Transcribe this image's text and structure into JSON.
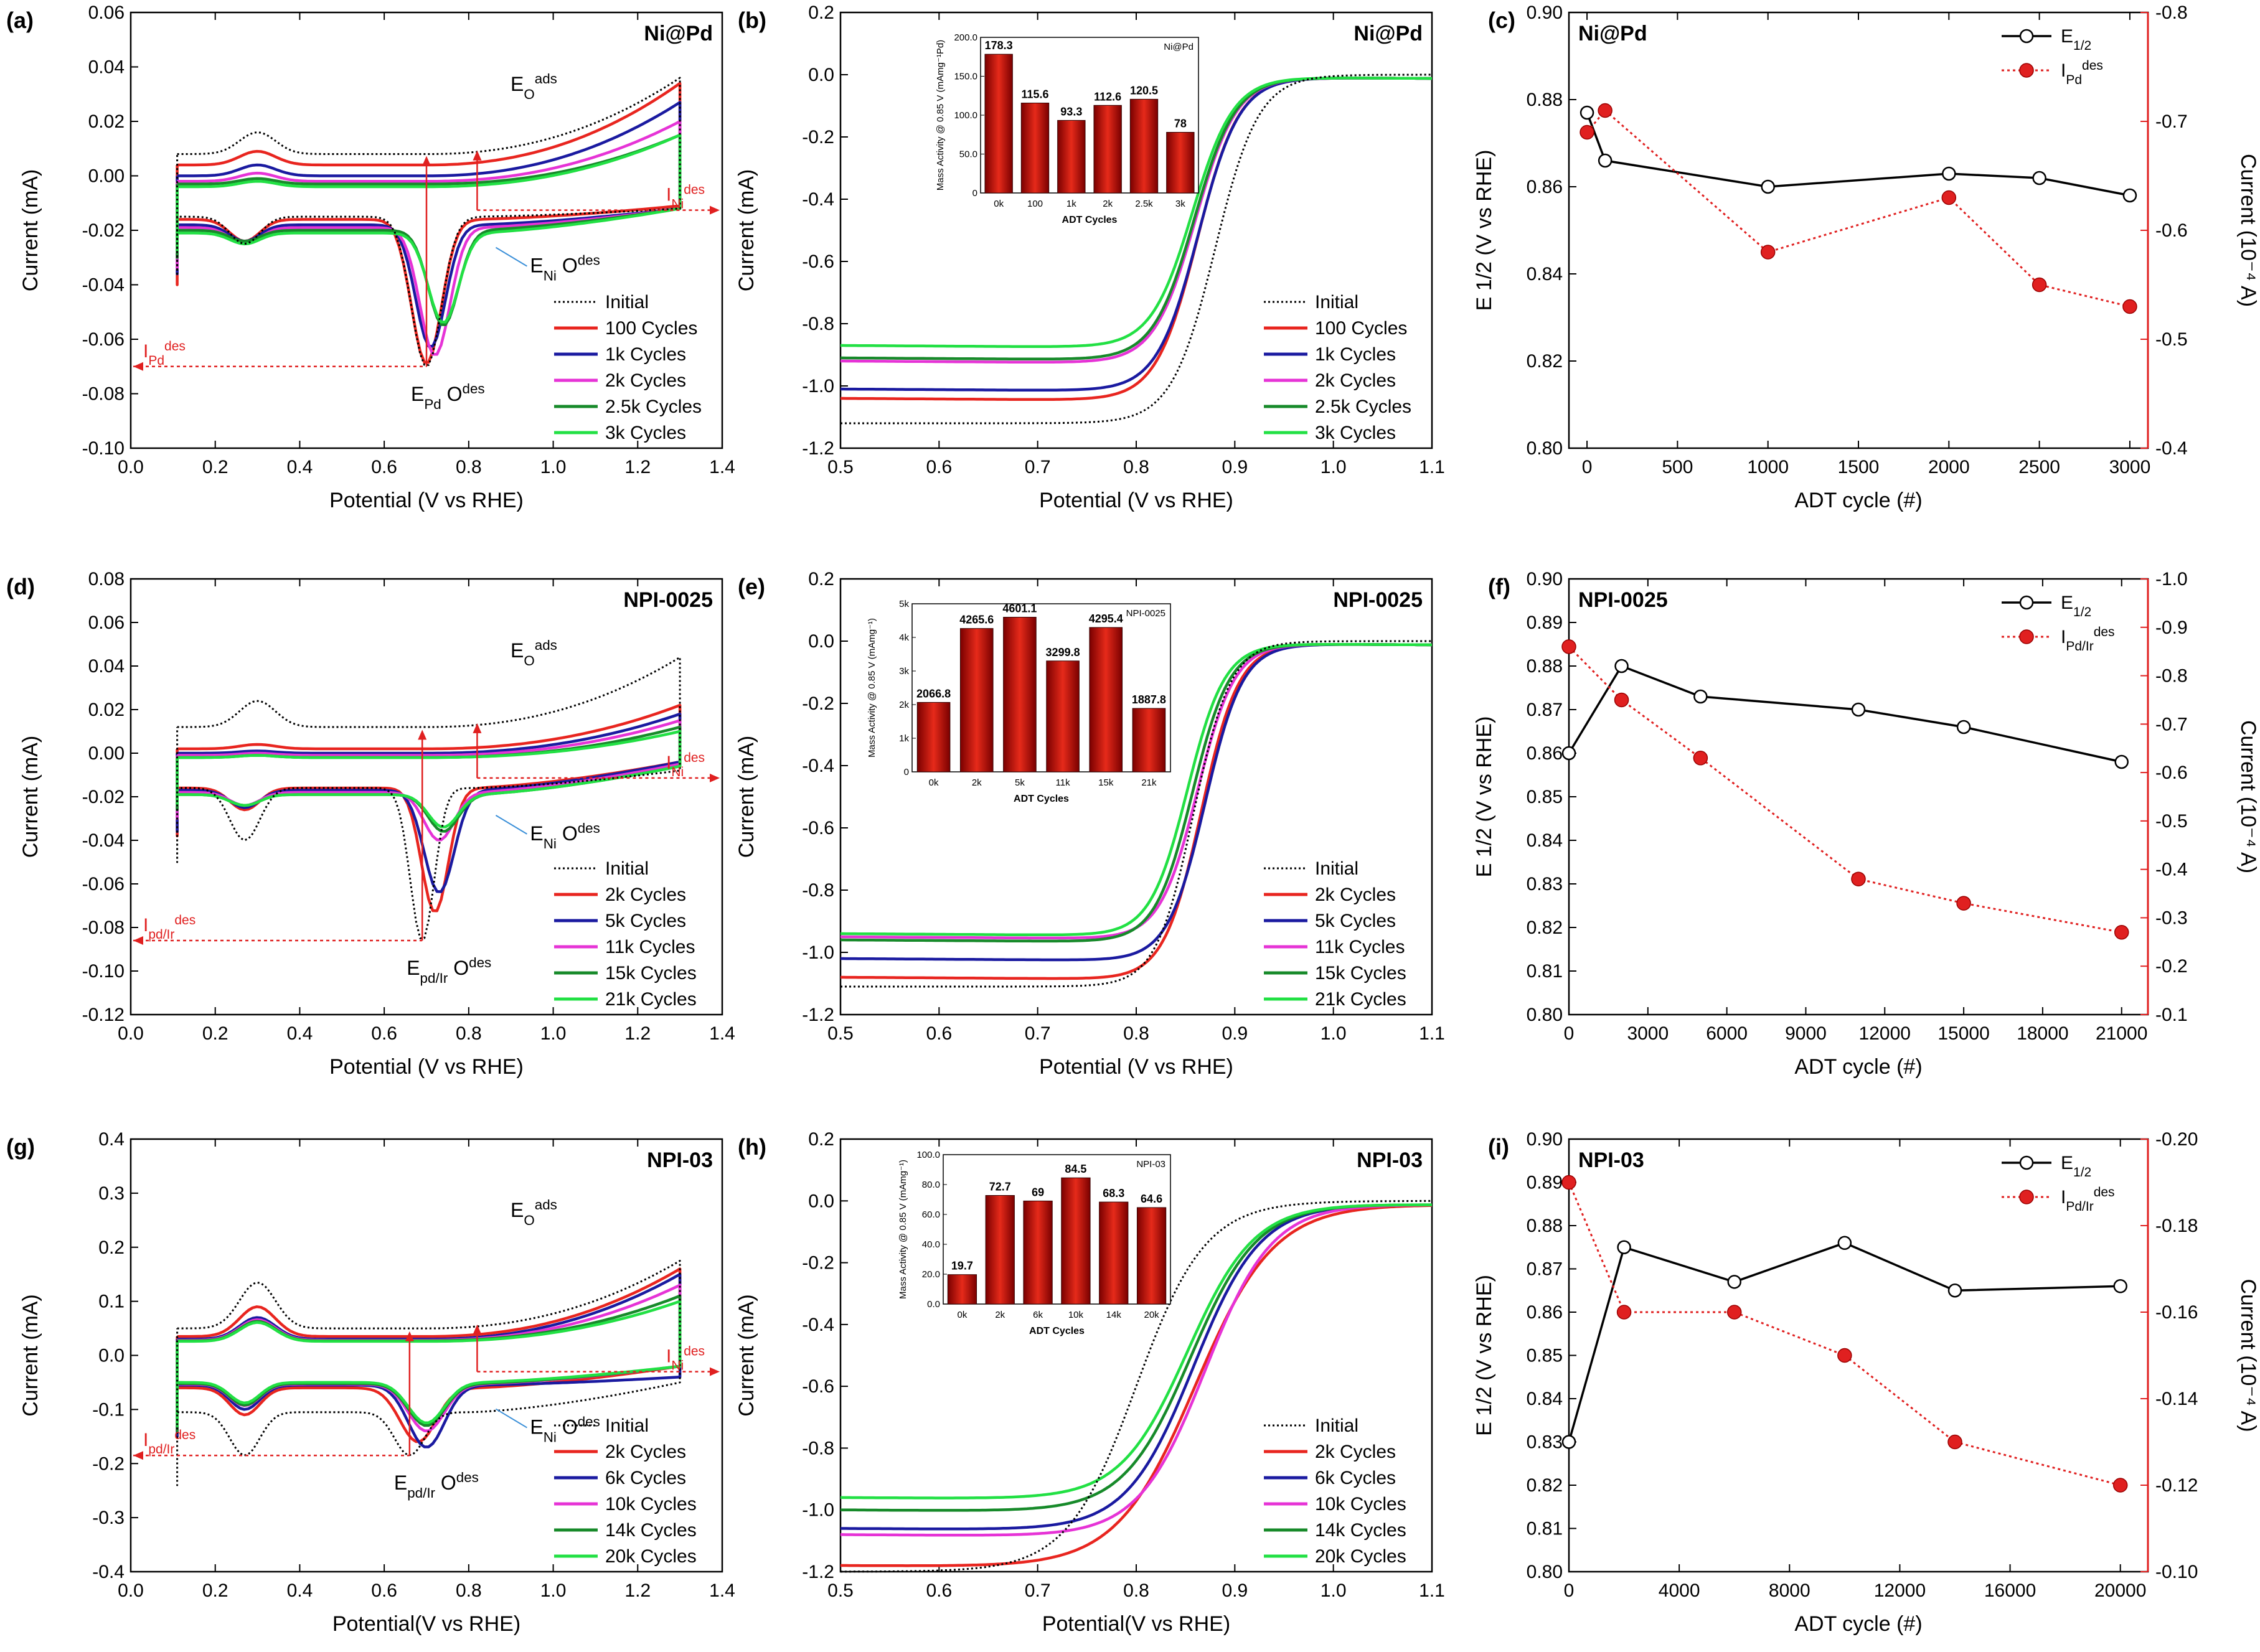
{
  "colors": {
    "initial": "#000000",
    "s1": "#e8251f",
    "s2": "#1a1aa0",
    "s3": "#e633d6",
    "s4": "#178a2a",
    "s5": "#22e044",
    "axis_right": "#e02020",
    "bar_dark": "#7a0000",
    "bar_light": "#e62a1a"
  },
  "chart_data": [
    {
      "id": "a",
      "type": "line",
      "panel_label": "(a)",
      "title": "Ni@Pd",
      "xlabel": "Potential (V vs RHE)",
      "ylabel": "Current (mA)",
      "xlim": [
        0.0,
        1.4
      ],
      "ylim": [
        -0.1,
        0.06
      ],
      "xticks": [
        "0.0",
        "0.2",
        "0.4",
        "0.6",
        "0.8",
        "1.0",
        "1.2",
        "1.4"
      ],
      "yticks": [
        "-0.10",
        "-0.08",
        "-0.06",
        "-0.04",
        "-0.02",
        "0.00",
        "0.02",
        "0.04",
        "0.06"
      ],
      "legend": [
        "Initial",
        "100 Cycles",
        "1k Cycles",
        "2k Cycles",
        "2.5k Cycles",
        "3k Cycles"
      ],
      "cv_params": [
        {
          "up": 0.008,
          "lo": -0.015,
          "hi": 0.036,
          "hl": -0.012,
          "peak": -0.07,
          "ppos": 0.7,
          "pw": 0.05,
          "hump": 0.008,
          "bump": -0.01,
          "sl": -0.036
        },
        {
          "up": 0.004,
          "lo": -0.016,
          "hi": 0.034,
          "hl": -0.011,
          "peak": -0.069,
          "ppos": 0.7,
          "pw": 0.05,
          "hump": 0.005,
          "bump": -0.008,
          "sl": -0.04
        },
        {
          "up": 0.0,
          "lo": -0.018,
          "hi": 0.027,
          "hl": -0.012,
          "peak": -0.063,
          "ppos": 0.71,
          "pw": 0.05,
          "hump": 0.004,
          "bump": -0.006,
          "sl": -0.036
        },
        {
          "up": -0.002,
          "lo": -0.019,
          "hi": 0.02,
          "hl": -0.012,
          "peak": -0.066,
          "ppos": 0.72,
          "pw": 0.05,
          "hump": 0.003,
          "bump": -0.006,
          "sl": -0.034
        },
        {
          "up": -0.003,
          "lo": -0.02,
          "hi": 0.015,
          "hl": -0.012,
          "peak": -0.055,
          "ppos": 0.74,
          "pw": 0.05,
          "hump": 0.002,
          "bump": -0.004,
          "sl": -0.03
        },
        {
          "up": -0.004,
          "lo": -0.021,
          "hi": 0.015,
          "hl": -0.012,
          "peak": -0.054,
          "ppos": 0.74,
          "pw": 0.05,
          "hump": 0.002,
          "bump": -0.004,
          "sl": -0.028
        }
      ],
      "annotations": {
        "eo": "E",
        "eo_sub": "O",
        "eo_sup": "ads",
        "eni": "E",
        "eni_sub": "Ni",
        "eni_o": "O",
        "eni_sup": "des",
        "epd": "E",
        "epd_sub": "Pd",
        "epd_o": "O",
        "epd_sup": "des",
        "ini": "I",
        "ini_sub": "Ni",
        "ini_sup": "des",
        "ipd": "I",
        "ipd_sub": "Pd",
        "ipd_sup": "des"
      }
    },
    {
      "id": "b",
      "type": "line",
      "panel_label": "(b)",
      "title": "Ni@Pd",
      "xlabel": "Potential (V vs RHE)",
      "ylabel": "Current (mA)",
      "xlim": [
        0.5,
        1.1
      ],
      "ylim": [
        -1.2,
        0.2
      ],
      "xticks": [
        "0.5",
        "0.6",
        "0.7",
        "0.8",
        "0.9",
        "1.0",
        "1.1"
      ],
      "yticks": [
        "-1.2",
        "-1.0",
        "-0.8",
        "-0.6",
        "-0.4",
        "-0.2",
        "0.0",
        "0.2"
      ],
      "legend": [
        "Initial",
        "100 Cycles",
        "1k Cycles",
        "2k Cycles",
        "2.5k Cycles",
        "3k Cycles"
      ],
      "lsv_params": [
        {
          "lim": -1.12,
          "e": 0.88,
          "k": 0.022
        },
        {
          "lim": -1.04,
          "e": 0.862,
          "k": 0.021
        },
        {
          "lim": -1.01,
          "e": 0.863,
          "k": 0.021
        },
        {
          "lim": -0.92,
          "e": 0.86,
          "k": 0.021
        },
        {
          "lim": -0.91,
          "e": 0.859,
          "k": 0.021
        },
        {
          "lim": -0.87,
          "e": 0.857,
          "k": 0.021
        }
      ],
      "inset": {
        "title": "Ni@Pd",
        "ylabel": "Mass Activity @ 0.85 V (mAmg⁻¹Pd)",
        "xlabel": "ADT Cycles",
        "categories": [
          "0k",
          "100",
          "1k",
          "2k",
          "2.5k",
          "3k"
        ],
        "values": [
          178.3,
          115.6,
          93.3,
          112.6,
          120.5,
          78
        ],
        "labels": [
          "178.3",
          "115.6",
          "93.3",
          "112.6",
          "120.5",
          "78"
        ],
        "ylim": [
          0,
          200
        ],
        "yticks": [
          "0",
          "50.0",
          "100.0",
          "150.0",
          "200.0"
        ]
      }
    },
    {
      "id": "c",
      "type": "line",
      "panel_label": "(c)",
      "title": "Ni@Pd",
      "xlabel": "ADT cycle (#)",
      "ylabel": "E 1/2  (V vs RHE)",
      "ylabel_right": "Current (10⁻⁴ A)",
      "xlim": [
        -100,
        3100
      ],
      "ylim": [
        0.8,
        0.9
      ],
      "ylim_right": [
        -0.4,
        -0.8
      ],
      "xticks_vals": [
        0,
        500,
        1000,
        1500,
        2000,
        2500,
        3000
      ],
      "yticks": [
        "0.80",
        "0.82",
        "0.84",
        "0.86",
        "0.88",
        "0.90"
      ],
      "yticks_right": [
        "-0.4",
        "-0.5",
        "-0.6",
        "-0.7",
        "-0.8"
      ],
      "series": [
        {
          "name": "E1/2",
          "x": [
            0,
            100,
            1000,
            2000,
            2500,
            3000
          ],
          "y": [
            0.877,
            0.866,
            0.86,
            0.863,
            0.862,
            0.858
          ]
        },
        {
          "name": "Ides",
          "x": [
            0,
            100,
            1000,
            2000,
            2500,
            3000
          ],
          "y": [
            -0.69,
            -0.71,
            -0.58,
            -0.63,
            -0.55,
            -0.53
          ]
        }
      ],
      "legend": [
        "E",
        "I"
      ],
      "legend_sub": [
        "1/2",
        "Pd"
      ],
      "legend_sup": [
        "",
        "des"
      ]
    },
    {
      "id": "d",
      "type": "line",
      "panel_label": "(d)",
      "title": "NPI-0025",
      "xlabel": "Potential (V vs RHE)",
      "ylabel": "Current (mA)",
      "xlim": [
        0.0,
        1.4
      ],
      "ylim": [
        -0.12,
        0.08
      ],
      "xticks": [
        "0.0",
        "0.2",
        "0.4",
        "0.6",
        "0.8",
        "1.0",
        "1.2",
        "1.4"
      ],
      "yticks": [
        "-0.12",
        "-0.10",
        "-0.08",
        "-0.06",
        "-0.04",
        "-0.02",
        "0.00",
        "0.02",
        "0.04",
        "0.06",
        "0.08"
      ],
      "legend": [
        "Initial",
        "2k Cycles",
        "5k Cycles",
        "11k Cycles",
        "15k Cycles",
        "21k Cycles"
      ],
      "cv_params": [
        {
          "up": 0.012,
          "lo": -0.016,
          "hi": 0.044,
          "hl": -0.008,
          "peak": -0.086,
          "ppos": 0.69,
          "pw": 0.04,
          "hump": 0.012,
          "bump": -0.024,
          "sl": -0.05
        },
        {
          "up": 0.002,
          "lo": -0.016,
          "hi": 0.022,
          "hl": -0.004,
          "peak": -0.073,
          "ppos": 0.72,
          "pw": 0.045,
          "hump": 0.002,
          "bump": -0.01,
          "sl": -0.038
        },
        {
          "up": 0.0,
          "lo": -0.017,
          "hi": 0.018,
          "hl": -0.004,
          "peak": -0.064,
          "ppos": 0.73,
          "pw": 0.05,
          "hump": 0.001,
          "bump": -0.008,
          "sl": -0.036
        },
        {
          "up": -0.001,
          "lo": -0.018,
          "hi": 0.015,
          "hl": -0.005,
          "peak": -0.04,
          "ppos": 0.73,
          "pw": 0.05,
          "hump": 0.001,
          "bump": -0.006,
          "sl": -0.03
        },
        {
          "up": -0.002,
          "lo": -0.019,
          "hi": 0.012,
          "hl": -0.006,
          "peak": -0.036,
          "ppos": 0.74,
          "pw": 0.05,
          "hump": 0.001,
          "bump": -0.005,
          "sl": -0.026
        },
        {
          "up": -0.002,
          "lo": -0.019,
          "hi": 0.01,
          "hl": -0.006,
          "peak": -0.034,
          "ppos": 0.74,
          "pw": 0.05,
          "hump": 0.001,
          "bump": -0.005,
          "sl": -0.024
        }
      ],
      "annotations": {
        "eo": "E",
        "eo_sub": "O",
        "eo_sup": "ads",
        "eni": "E",
        "eni_sub": "Ni",
        "eni_o": "O",
        "eni_sup": "des",
        "epd": "E",
        "epd_sub": "pd/Ir",
        "epd_o": "O",
        "epd_sup": "des",
        "ini": "I",
        "ini_sub": "Ni",
        "ini_sup": "des",
        "ipd": "I",
        "ipd_sub": "pd/Ir",
        "ipd_sup": "des"
      }
    },
    {
      "id": "e",
      "type": "line",
      "panel_label": "(e)",
      "title": "NPI-0025",
      "xlabel": "Potential (V vs RHE)",
      "ylabel": "Current (mA)",
      "xlim": [
        0.5,
        1.1
      ],
      "ylim": [
        -1.2,
        0.2
      ],
      "xticks": [
        "0.5",
        "0.6",
        "0.7",
        "0.8",
        "0.9",
        "1.0",
        "1.1"
      ],
      "yticks": [
        "-1.2",
        "-1.0",
        "-0.8",
        "-0.6",
        "-0.4",
        "-0.2",
        "0.0",
        "0.2"
      ],
      "legend": [
        "Initial",
        "2k Cycles",
        "5k Cycles",
        "11k Cycles",
        "15k Cycles",
        "21k Cycles"
      ],
      "lsv_params": [
        {
          "lim": -1.11,
          "e": 0.858,
          "k": 0.019
        },
        {
          "lim": -1.08,
          "e": 0.866,
          "k": 0.019
        },
        {
          "lim": -1.02,
          "e": 0.87,
          "k": 0.019
        },
        {
          "lim": -0.95,
          "e": 0.862,
          "k": 0.019
        },
        {
          "lim": -0.96,
          "e": 0.857,
          "k": 0.019
        },
        {
          "lim": -0.94,
          "e": 0.852,
          "k": 0.019
        }
      ],
      "inset": {
        "title": "NPI-0025",
        "ylabel": "Mass Activity @ 0.85 V (mAmg⁻¹)",
        "xlabel": "ADT Cycles",
        "categories": [
          "0k",
          "2k",
          "5k",
          "11k",
          "15k",
          "21k"
        ],
        "values": [
          2066.8,
          4265.6,
          4601.1,
          3299.8,
          4295.4,
          1887.8
        ],
        "labels": [
          "2066.8",
          "4265.6",
          "4601.1",
          "3299.8",
          "4295.4",
          "1887.8"
        ],
        "ylim": [
          0,
          5000
        ],
        "yticks": [
          "0",
          "1k",
          "2k",
          "3k",
          "4k",
          "5k"
        ]
      }
    },
    {
      "id": "f",
      "type": "line",
      "panel_label": "(f)",
      "title": "NPI-0025",
      "xlabel": "ADT cycle (#)",
      "ylabel": "E 1/2  (V vs RHE)",
      "ylabel_right": "Current (10⁻⁴ A)",
      "xlim": [
        0,
        22000
      ],
      "ylim": [
        0.8,
        0.9
      ],
      "ylim_right": [
        -0.1,
        -1.0
      ],
      "xticks_vals": [
        0,
        3000,
        6000,
        9000,
        12000,
        15000,
        18000,
        21000
      ],
      "yticks": [
        "0.80",
        "0.81",
        "0.82",
        "0.83",
        "0.84",
        "0.85",
        "0.86",
        "0.87",
        "0.88",
        "0.89",
        "0.90"
      ],
      "yticks_right": [
        "-0.1",
        "-0.2",
        "-0.3",
        "-0.4",
        "-0.5",
        "-0.6",
        "-0.7",
        "-0.8",
        "-0.9",
        "-1.0"
      ],
      "series": [
        {
          "name": "E1/2",
          "x": [
            0,
            2000,
            5000,
            11000,
            15000,
            21000
          ],
          "y": [
            0.86,
            0.88,
            0.873,
            0.87,
            0.866,
            0.858
          ]
        },
        {
          "name": "Ides",
          "x": [
            0,
            2000,
            5000,
            11000,
            15000,
            21000
          ],
          "y": [
            -0.86,
            -0.75,
            -0.63,
            -0.38,
            -0.33,
            -0.27
          ]
        }
      ],
      "legend": [
        "E",
        "I"
      ],
      "legend_sub": [
        "1/2",
        "Pd/Ir"
      ],
      "legend_sup": [
        "",
        "des"
      ]
    },
    {
      "id": "g",
      "type": "line",
      "panel_label": "(g)",
      "title": "NPI-03",
      "xlabel": "Potential(V vs RHE)",
      "ylabel": "Current (mA)",
      "xlim": [
        0.0,
        1.4
      ],
      "ylim": [
        -0.4,
        0.4
      ],
      "xticks": [
        "0.0",
        "0.2",
        "0.4",
        "0.6",
        "0.8",
        "1.0",
        "1.2",
        "1.4"
      ],
      "yticks": [
        "-0.4",
        "-0.3",
        "-0.2",
        "-0.1",
        "0.0",
        "0.1",
        "0.2",
        "0.3",
        "0.4"
      ],
      "legend": [
        "Initial",
        "2k Cycles",
        "6k Cycles",
        "10k Cycles",
        "14k Cycles",
        "20k Cycles"
      ],
      "cv_params": [
        {
          "up": 0.05,
          "lo": -0.105,
          "hi": 0.175,
          "hl": -0.05,
          "peak": -0.185,
          "ppos": 0.66,
          "pw": 0.05,
          "hump": 0.085,
          "bump": -0.08,
          "sl": -0.24
        },
        {
          "up": 0.035,
          "lo": -0.06,
          "hi": 0.16,
          "hl": -0.02,
          "peak": -0.16,
          "ppos": 0.68,
          "pw": 0.06,
          "hump": 0.055,
          "bump": -0.05,
          "sl": -0.15
        },
        {
          "up": 0.03,
          "lo": -0.055,
          "hi": 0.15,
          "hl": -0.04,
          "peak": -0.17,
          "ppos": 0.7,
          "pw": 0.06,
          "hump": 0.04,
          "bump": -0.045,
          "sl": -0.15
        },
        {
          "up": 0.028,
          "lo": -0.053,
          "hi": 0.13,
          "hl": -0.02,
          "peak": -0.14,
          "ppos": 0.7,
          "pw": 0.06,
          "hump": 0.038,
          "bump": -0.04,
          "sl": -0.14
        },
        {
          "up": 0.027,
          "lo": -0.052,
          "hi": 0.11,
          "hl": -0.02,
          "peak": -0.13,
          "ppos": 0.7,
          "pw": 0.06,
          "hump": 0.036,
          "bump": -0.04,
          "sl": -0.14
        },
        {
          "up": 0.026,
          "lo": -0.05,
          "hi": 0.1,
          "hl": -0.02,
          "peak": -0.125,
          "ppos": 0.7,
          "pw": 0.06,
          "hump": 0.035,
          "bump": -0.038,
          "sl": -0.13
        }
      ],
      "annotations": {
        "eo": "E",
        "eo_sub": "O",
        "eo_sup": "ads",
        "eni": "E",
        "eni_sub": "Ni",
        "eni_o": "O",
        "eni_sup": "des",
        "epd": "E",
        "epd_sub": "pd/Ir",
        "epd_o": "O",
        "epd_sup": "des",
        "ini": "I",
        "ini_sub": "Ni",
        "ini_sup": "des",
        "ipd": "I",
        "ipd_sub": "pd/Ir",
        "ipd_sup": "des"
      }
    },
    {
      "id": "h",
      "type": "line",
      "panel_label": "(h)",
      "title": "NPI-03",
      "xlabel": "Potential(V vs RHE)",
      "ylabel": "Current (mA)",
      "xlim": [
        0.5,
        1.1
      ],
      "ylim": [
        -1.2,
        0.2
      ],
      "xticks": [
        "0.5",
        "0.6",
        "0.7",
        "0.8",
        "0.9",
        "1.0",
        "1.1"
      ],
      "yticks": [
        "-1.2",
        "-1.0",
        "-0.8",
        "-0.6",
        "-0.4",
        "-0.2",
        "0.0",
        "0.2"
      ],
      "legend": [
        "Initial",
        "2k Cycles",
        "6k Cycles",
        "10k Cycles",
        "14k Cycles",
        "20k Cycles"
      ],
      "lsv_params": [
        {
          "lim": -1.2,
          "e": 0.8,
          "k": 0.035
        },
        {
          "lim": -1.18,
          "e": 0.86,
          "k": 0.04
        },
        {
          "lim": -1.06,
          "e": 0.858,
          "k": 0.034
        },
        {
          "lim": -1.08,
          "e": 0.87,
          "k": 0.034
        },
        {
          "lim": -1.0,
          "e": 0.855,
          "k": 0.034
        },
        {
          "lim": -0.96,
          "e": 0.852,
          "k": 0.034
        }
      ],
      "inset": {
        "title": "NPI-03",
        "ylabel": "Mass Activity @ 0.85 V (mAmg⁻¹)",
        "xlabel": "ADT Cycles",
        "categories": [
          "0k",
          "2k",
          "6k",
          "10k",
          "14k",
          "20k"
        ],
        "values": [
          19.7,
          72.7,
          69,
          84.5,
          68.3,
          64.6
        ],
        "labels": [
          "19.7",
          "72.7",
          "69",
          "84.5",
          "68.3",
          "64.6"
        ],
        "ylim": [
          0,
          100
        ],
        "yticks": [
          "0.0",
          "20.0",
          "40.0",
          "60.0",
          "80.0",
          "100.0"
        ]
      }
    },
    {
      "id": "i",
      "type": "line",
      "panel_label": "(i)",
      "title": "NPI-03",
      "xlabel": "ADT cycle (#)",
      "ylabel": "E 1/2  (V vs RHE)",
      "ylabel_right": "Current (10⁻⁴ A)",
      "xlim": [
        0,
        21000
      ],
      "ylim": [
        0.8,
        0.9
      ],
      "ylim_right": [
        -0.1,
        -0.2
      ],
      "xticks_vals": [
        0,
        4000,
        8000,
        12000,
        16000,
        20000
      ],
      "yticks": [
        "0.80",
        "0.81",
        "0.82",
        "0.83",
        "0.84",
        "0.85",
        "0.86",
        "0.87",
        "0.88",
        "0.89",
        "0.90"
      ],
      "yticks_right": [
        "-0.10",
        "-0.12",
        "-0.14",
        "-0.16",
        "-0.18",
        "-0.20"
      ],
      "series": [
        {
          "name": "E1/2",
          "x": [
            0,
            2000,
            6000,
            10000,
            14000,
            20000
          ],
          "y": [
            0.83,
            0.875,
            0.867,
            0.876,
            0.865,
            0.866
          ]
        },
        {
          "name": "Ides",
          "x": [
            0,
            2000,
            6000,
            10000,
            14000,
            20000
          ],
          "y": [
            -0.19,
            -0.16,
            -0.16,
            -0.15,
            -0.13,
            -0.12
          ]
        }
      ],
      "legend": [
        "E",
        "I"
      ],
      "legend_sub": [
        "1/2",
        "Pd/Ir"
      ],
      "legend_sup": [
        "",
        "des"
      ]
    }
  ]
}
